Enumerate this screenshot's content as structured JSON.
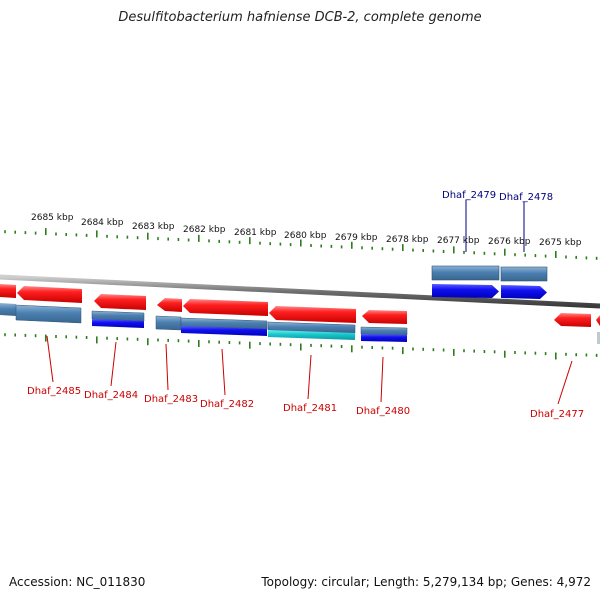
{
  "title": "Desulfitobacterium hafniense DCB-2, complete genome",
  "footer": {
    "accession": "Accession: NC_011830",
    "stats": "Topology: circular; Length: 5,279,134 bp; Genes: 4,972"
  },
  "scale_labels": [
    "2685 kbp",
    "2684 kbp",
    "2683 kbp",
    "2682 kbp",
    "2681 kbp",
    "2680 kbp",
    "2679 kbp",
    "2678 kbp",
    "2677 kbp",
    "2676 kbp",
    "2675 kbp"
  ],
  "gene_labels": {
    "dhaf_2485": "Dhaf_2485",
    "dhaf_2484": "Dhaf_2484",
    "dhaf_2483": "Dhaf_2483",
    "dhaf_2482": "Dhaf_2482",
    "dhaf_2481": "Dhaf_2481",
    "dhaf_2480": "Dhaf_2480",
    "dhaf_2479": "Dhaf_2479",
    "dhaf_2478": "Dhaf_2478",
    "dhaf_2477": "Dhaf_2477"
  },
  "colors": {
    "reverse_gene": "#e8242b",
    "forward_gene": "#1b1de0",
    "cds_feature": "#4a7fb0",
    "rna_feature": "#20c8d0",
    "backbone": "#7a7a7a",
    "tick": "#2e7d1e",
    "label_red": "#cc0000",
    "label_blue": "#00007f"
  }
}
